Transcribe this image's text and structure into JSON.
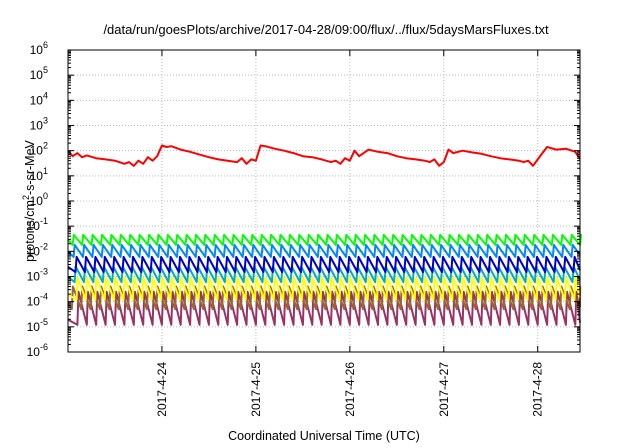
{
  "chart_data": {
    "type": "line",
    "title": "/data/run/goesPlots/archive/2017-04-28/09:00/flux/../flux/5daysMarsFluxes.txt",
    "xlabel": "Coordinated Universal Time (UTC)",
    "ylabel": {
      "prefix": "protons/cm",
      "superscript": "2",
      "suffix": "-s-sr-MeV"
    },
    "yscale": "log",
    "ylim": [
      1e-06,
      1000000.0
    ],
    "xlim": [
      0,
      5.45
    ],
    "grid": true,
    "x_ticks": [
      {
        "label": "2017-4-24",
        "x": 1
      },
      {
        "label": "2017-4-25",
        "x": 2
      },
      {
        "label": "2017-4-26",
        "x": 3
      },
      {
        "label": "2017-4-27",
        "x": 4
      },
      {
        "label": "2017-4-28",
        "x": 5
      }
    ],
    "y_ticks": [
      {
        "base": "10",
        "exp": "-6",
        "value": 1e-06
      },
      {
        "base": "10",
        "exp": "-5",
        "value": 1e-05
      },
      {
        "base": "10",
        "exp": "-4",
        "value": 0.0001
      },
      {
        "base": "10",
        "exp": "-3",
        "value": 0.001
      },
      {
        "base": "10",
        "exp": "-2",
        "value": 0.01
      },
      {
        "base": "10",
        "exp": "-1",
        "value": 0.1
      },
      {
        "base": "10",
        "exp": "0",
        "value": 1
      },
      {
        "base": "10",
        "exp": "1",
        "value": 10
      },
      {
        "base": "10",
        "exp": "2",
        "value": 100
      },
      {
        "base": "10",
        "exp": "3",
        "value": 1000
      },
      {
        "base": "10",
        "exp": "4",
        "value": 10000
      },
      {
        "base": "10",
        "exp": "5",
        "value": 100000
      },
      {
        "base": "10",
        "exp": "6",
        "value": 1000000
      }
    ],
    "series": [
      {
        "color": "#ff0000",
        "x": [
          0,
          0.05,
          0.1,
          0.15,
          0.2,
          0.3,
          0.4,
          0.5,
          0.6,
          0.65,
          0.7,
          0.75,
          0.8,
          0.85,
          0.9,
          0.95,
          1.0,
          1.05,
          1.1,
          1.2,
          1.3,
          1.4,
          1.5,
          1.6,
          1.7,
          1.8,
          1.85,
          1.9,
          1.95,
          2.0,
          2.05,
          2.1,
          2.2,
          2.3,
          2.4,
          2.5,
          2.6,
          2.7,
          2.8,
          2.85,
          2.9,
          2.95,
          3.0,
          3.05,
          3.1,
          3.2,
          3.3,
          3.4,
          3.5,
          3.6,
          3.7,
          3.8,
          3.85,
          3.9,
          3.95,
          4.0,
          4.05,
          4.1,
          4.2,
          4.3,
          4.4,
          4.5,
          4.6,
          4.7,
          4.8,
          4.85,
          4.9,
          4.95,
          5.0,
          5.05,
          5.1,
          5.2,
          5.3,
          5.4,
          5.45
        ],
        "y": [
          100,
          60,
          80,
          55,
          65,
          50,
          45,
          40,
          30,
          35,
          25,
          40,
          30,
          55,
          40,
          60,
          160,
          140,
          150,
          110,
          90,
          70,
          55,
          45,
          40,
          35,
          50,
          30,
          45,
          40,
          160,
          150,
          120,
          100,
          80,
          60,
          55,
          45,
          35,
          40,
          30,
          50,
          40,
          100,
          60,
          110,
          90,
          80,
          60,
          50,
          45,
          40,
          35,
          45,
          25,
          35,
          110,
          80,
          100,
          85,
          75,
          60,
          50,
          45,
          40,
          35,
          40,
          25,
          45,
          80,
          140,
          110,
          120,
          90,
          45
        ]
      },
      {
        "color": "#00ff00",
        "pattern": {
          "offset": 0.05,
          "period": 0.1,
          "high": 0.045,
          "low": 0.018
        }
      },
      {
        "color": "#0088ff",
        "pattern": {
          "offset": 0.06,
          "period": 0.1,
          "high": 0.018,
          "low": 0.006
        }
      },
      {
        "color": "#0000cc",
        "pattern": {
          "offset": 0.08,
          "period": 0.1,
          "high": 0.006,
          "low": 0.0015
        }
      },
      {
        "color": "#00b0b0",
        "pattern": {
          "offset": 0.07,
          "period": 0.1,
          "high": 0.0025,
          "low": 0.0006
        }
      },
      {
        "color": "#ffff00",
        "pattern": {
          "offset": 0.09,
          "period": 0.1,
          "high": 0.0009,
          "low": 0.00012
        }
      },
      {
        "color": "#996633",
        "pattern": {
          "offset": 0.04,
          "period": 0.1,
          "high": 0.0004,
          "low": 5e-05
        }
      },
      {
        "color": "#993366",
        "pattern": {
          "offset": 0.1,
          "period": 0.1,
          "high": 0.00025,
          "low": 1.2e-05
        }
      }
    ]
  }
}
